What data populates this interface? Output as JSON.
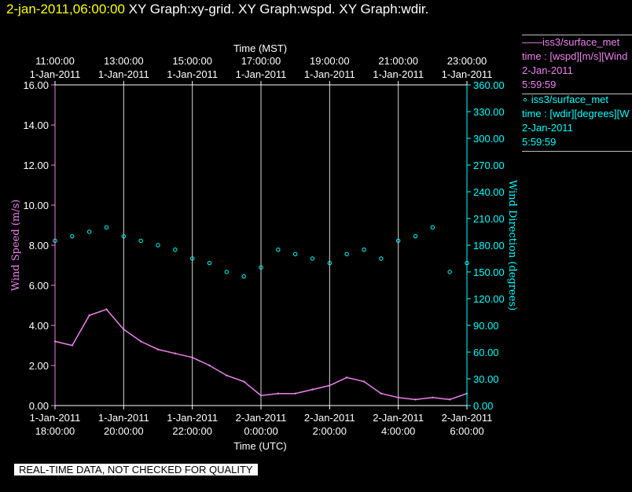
{
  "header": {
    "time": "2-jan-2011,06:00:00",
    "graphs": " XY Graph:xy-grid.  XY Graph:wspd.  XY Graph:wdir."
  },
  "legend": {
    "wspd": {
      "name": "——iss3/surface_met",
      "var": "time : [wspd][m/s][Wind",
      "date": "2-Jan-2011",
      "time": "5:59:59"
    },
    "wdir": {
      "name": "iss3/surface_met",
      "var": "time : [wdir][degrees][W",
      "date": "2-Jan-2011",
      "time": "5:59:59"
    }
  },
  "notice": "REAL-TIME DATA, NOT CHECKED FOR QUALITY",
  "chart_data": {
    "type": "line",
    "grid": true,
    "top_axis": {
      "label": "Time (MST)",
      "ticks": [
        {
          "t": "11:00:00",
          "d": "1-Jan-2011"
        },
        {
          "t": "13:00:00",
          "d": "1-Jan-2011"
        },
        {
          "t": "15:00:00",
          "d": "1-Jan-2011"
        },
        {
          "t": "17:00:00",
          "d": "1-Jan-2011"
        },
        {
          "t": "19:00:00",
          "d": "1-Jan-2011"
        },
        {
          "t": "21:00:00",
          "d": "1-Jan-2011"
        },
        {
          "t": "23:00:00",
          "d": "1-Jan-2011"
        }
      ]
    },
    "bottom_axis": {
      "label": "Time (UTC)",
      "ticks": [
        {
          "d": "1-Jan-2011",
          "t": "18:00:00"
        },
        {
          "d": "1-Jan-2011",
          "t": "20:00:00"
        },
        {
          "d": "1-Jan-2011",
          "t": "22:00:00"
        },
        {
          "d": "2-Jan-2011",
          "t": "0:00:00"
        },
        {
          "d": "2-Jan-2011",
          "t": "2:00:00"
        },
        {
          "d": "2-Jan-2011",
          "t": "4:00:00"
        },
        {
          "d": "2-Jan-2011",
          "t": "6:00:00"
        }
      ]
    },
    "x_range_utc_hours": [
      18,
      30
    ],
    "left_axis": {
      "label": "Wind Speed (m/s)",
      "ylim": [
        0,
        16
      ],
      "ticks": [
        "0.00",
        "2.00",
        "4.00",
        "6.00",
        "8.00",
        "10.00",
        "12.00",
        "14.00",
        "16.00"
      ]
    },
    "right_axis": {
      "label": "Wind Direction (degrees)",
      "ylim": [
        0,
        360
      ],
      "ticks": [
        "0.00",
        "30.00",
        "60.00",
        "90.00",
        "120.00",
        "150.00",
        "180.00",
        "210.00",
        "240.00",
        "270.00",
        "300.00",
        "330.00",
        "360.00"
      ]
    },
    "series": [
      {
        "name": "iss3/surface_met wspd",
        "color": "#ee82ee",
        "style": "line",
        "x": [
          18.0,
          18.5,
          19.0,
          19.5,
          20.0,
          20.5,
          21.0,
          21.5,
          22.0,
          22.5,
          23.0,
          23.5,
          24.0,
          24.5,
          25.0,
          25.5,
          26.0,
          26.5,
          27.0,
          27.5,
          28.0,
          28.5,
          29.0,
          29.5,
          30.0
        ],
        "y": [
          3.2,
          3.0,
          4.5,
          4.8,
          3.8,
          3.2,
          2.8,
          2.6,
          2.4,
          2.0,
          1.5,
          1.2,
          0.5,
          0.6,
          0.6,
          0.8,
          1.0,
          1.4,
          1.2,
          0.6,
          0.4,
          0.3,
          0.4,
          0.3,
          0.6
        ]
      },
      {
        "name": "iss3/surface_met wdir",
        "color": "#00ffff",
        "style": "points",
        "x": [
          18.0,
          18.5,
          19.0,
          19.5,
          20.0,
          20.5,
          21.0,
          21.5,
          22.0,
          22.5,
          23.0,
          23.5,
          24.0,
          24.5,
          25.0,
          25.5,
          26.0,
          26.5,
          27.0,
          27.5,
          28.0,
          28.5,
          29.0,
          29.5,
          30.0
        ],
        "y": [
          185,
          190,
          195,
          200,
          190,
          185,
          180,
          175,
          165,
          160,
          150,
          145,
          155,
          175,
          170,
          165,
          160,
          170,
          175,
          165,
          185,
          190,
          200,
          150,
          160
        ]
      }
    ]
  }
}
